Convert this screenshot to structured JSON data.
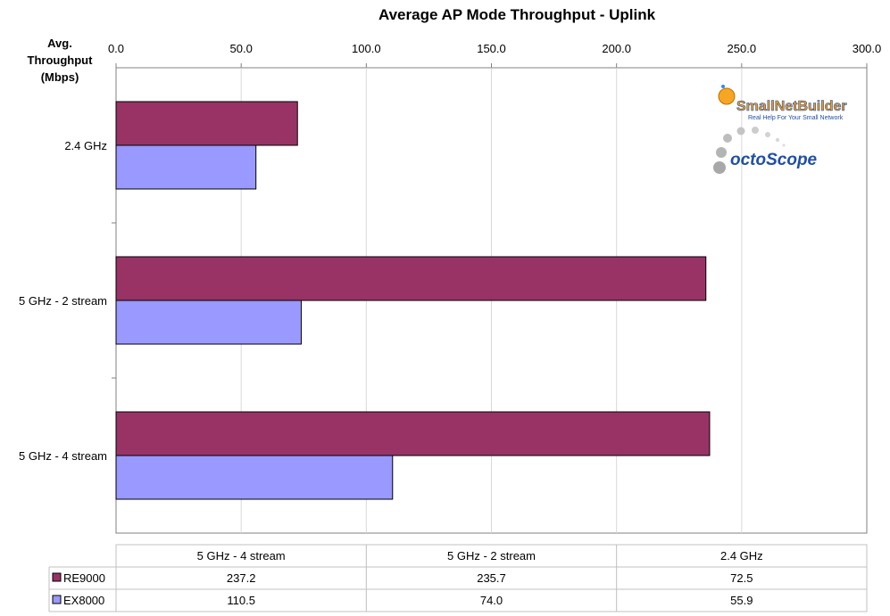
{
  "chart_data": {
    "type": "bar",
    "orientation": "horizontal",
    "title": "Average AP Mode Throughput - Uplink",
    "ylabel": [
      "Avg.",
      "Throughput",
      "(Mbps)"
    ],
    "categories": [
      "2.4 GHz",
      "5 GHz - 2 stream",
      "5 GHz - 4 stream"
    ],
    "series": [
      {
        "name": "RE9000",
        "values": [
          72.5,
          235.7,
          237.2
        ],
        "color": "#993366"
      },
      {
        "name": "EX8000",
        "values": [
          55.9,
          74.0,
          110.5
        ],
        "color": "#9999ff"
      }
    ],
    "xlim": [
      0,
      300
    ],
    "ticks": [
      "0.0",
      "50.0",
      "100.0",
      "150.0",
      "200.0",
      "250.0",
      "300.0"
    ],
    "tick_values": [
      0,
      50,
      100,
      150,
      200,
      250,
      300
    ],
    "grid": true,
    "legend": "data-table-below",
    "data_table": {
      "columns": [
        "5 GHz - 4 stream",
        "5 GHz - 2 stream",
        "2.4 GHz"
      ],
      "rows": [
        {
          "name": "RE9000",
          "values": [
            "237.2",
            "235.7",
            "72.5"
          ]
        },
        {
          "name": "EX8000",
          "values": [
            "110.5",
            "74.0",
            "55.9"
          ]
        }
      ]
    }
  },
  "logos": {
    "smallnetbuilder": "SmallNetBuilder",
    "smallnetbuilder_tagline": "Real Help For Your Small Network",
    "octoscope": "octoScope"
  }
}
